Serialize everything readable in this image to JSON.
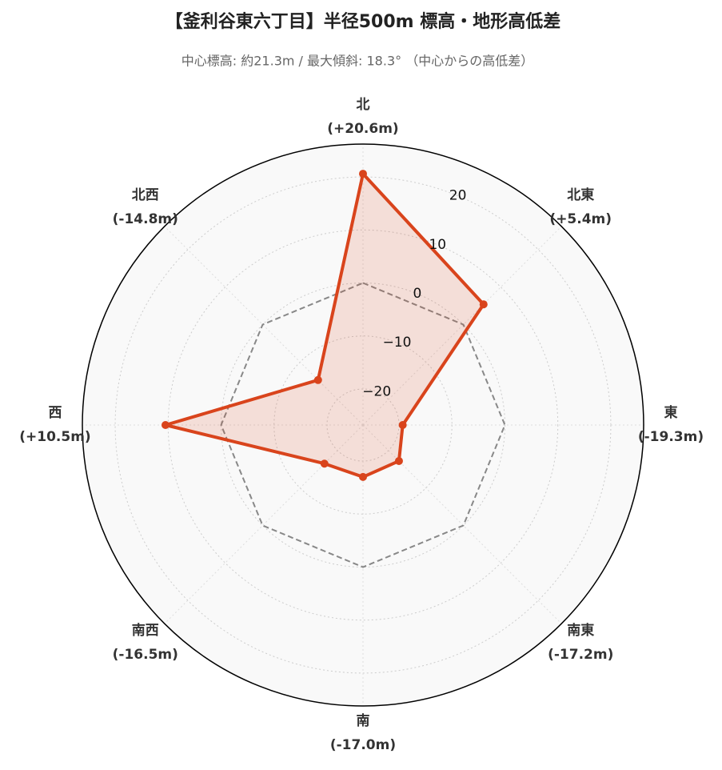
{
  "chart_data": {
    "type": "radar",
    "title": "【釜利谷東六丁目】半径500m 標高・地形高低差",
    "subtitle": "中心標高: 約21.3m / 最大傾斜: 18.3° （中心からの高低差）",
    "categories": [
      "北",
      "北東",
      "東",
      "南東",
      "南",
      "南西",
      "西",
      "北西"
    ],
    "values": [
      20.6,
      5.4,
      -19.3,
      -17.2,
      -17.0,
      -16.5,
      10.5,
      -14.8
    ],
    "value_labels": [
      "(+20.6m)",
      "(+5.4m)",
      "(-19.3m)",
      "(-17.2m)",
      "(-17.0m)",
      "(-16.5m)",
      "(+10.5m)",
      "(-14.8m)"
    ],
    "color": "#d9441c",
    "reference_line": 0,
    "ylim": [
      -26.8,
      26.2
    ],
    "yticks": [
      {
        "value": -20,
        "label": "−20"
      },
      {
        "value": -10,
        "label": "−10"
      },
      0,
      10,
      20
    ],
    "grid": true
  }
}
